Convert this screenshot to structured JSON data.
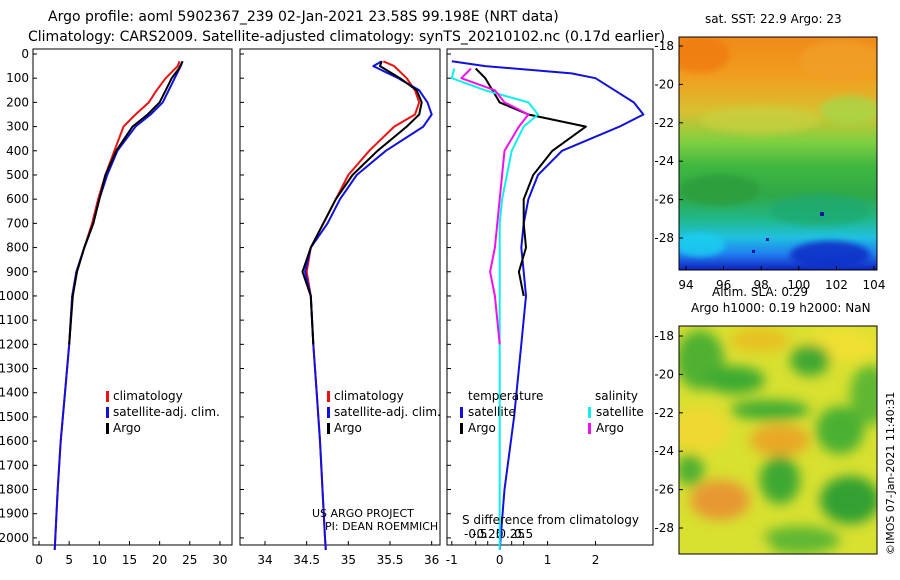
{
  "header": {
    "line1": "Argo profile: aoml 5902367_239 02-Jan-2021 23.58S 99.198E (NRT data)",
    "line2": "Climatology: CARS2009. Satellite-adjusted climatology: synTS_20210102.nc (0.17d earlier)"
  },
  "colors": {
    "climatology": "#ee1111",
    "satellite": "#1111dd",
    "argo": "#000000",
    "salinity_satellite": "#11eeee",
    "salinity_argo": "#ee11ee"
  },
  "chart_data": [
    {
      "type": "line",
      "panel": "temperature",
      "ylabel": "Depth",
      "ylim": [
        2050,
        0
      ],
      "yticks": [
        0,
        100,
        200,
        300,
        400,
        500,
        600,
        700,
        800,
        900,
        1000,
        1100,
        1200,
        1300,
        1400,
        1500,
        1600,
        1700,
        1800,
        1900,
        2000
      ],
      "xlim": [
        -1,
        32
      ],
      "xticks": [
        0,
        5,
        10,
        15,
        20,
        25,
        30
      ],
      "legend": [
        "climatology",
        "satellite-adj. clim.",
        "Argo"
      ],
      "series": [
        {
          "name": "climatology",
          "color": "#ee1111",
          "points": [
            [
              23.3,
              30
            ],
            [
              23.0,
              50
            ],
            [
              21,
              100
            ],
            [
              19.5,
              150
            ],
            [
              18.2,
              200
            ],
            [
              16,
              250
            ],
            [
              14,
              300
            ],
            [
              12.5,
              400
            ],
            [
              11,
              500
            ],
            [
              9.8,
              600
            ],
            [
              8.8,
              700
            ],
            [
              7.5,
              800
            ],
            [
              6.2,
              900
            ],
            [
              5.5,
              1000
            ],
            [
              5.0,
              1200
            ],
            [
              4.3,
              1400
            ],
            [
              3.6,
              1600
            ],
            [
              3.1,
              1800
            ],
            [
              2.7,
              2000
            ],
            [
              2.6,
              2050
            ]
          ]
        },
        {
          "name": "satellite-adj. clim.",
          "color": "#1111dd",
          "points": [
            [
              23.8,
              30
            ],
            [
              23.5,
              50
            ],
            [
              22.5,
              100
            ],
            [
              21.5,
              150
            ],
            [
              20.5,
              200
            ],
            [
              18.5,
              250
            ],
            [
              16,
              300
            ],
            [
              13,
              400
            ],
            [
              11.3,
              500
            ],
            [
              10,
              600
            ],
            [
              9,
              700
            ],
            [
              7.5,
              800
            ],
            [
              6.2,
              900
            ],
            [
              5.5,
              1000
            ],
            [
              5.0,
              1200
            ],
            [
              4.3,
              1400
            ],
            [
              3.6,
              1600
            ],
            [
              3.1,
              1800
            ],
            [
              2.7,
              2000
            ],
            [
              2.6,
              2050
            ]
          ]
        },
        {
          "name": "Argo",
          "color": "#000000",
          "points": [
            [
              23.8,
              30
            ],
            [
              23.2,
              60
            ],
            [
              22.0,
              100
            ],
            [
              21.0,
              150
            ],
            [
              20.0,
              200
            ],
            [
              18,
              250
            ],
            [
              15.5,
              300
            ],
            [
              12.8,
              400
            ],
            [
              11,
              500
            ],
            [
              10,
              600
            ],
            [
              9,
              700
            ],
            [
              7.5,
              800
            ],
            [
              6.3,
              900
            ],
            [
              5.6,
              1000
            ],
            [
              5.0,
              1200
            ]
          ]
        }
      ]
    },
    {
      "type": "line",
      "panel": "salinity",
      "ylim": [
        2050,
        0
      ],
      "xlim": [
        33.7,
        36.1
      ],
      "xticks": [
        34,
        34.5,
        35,
        35.5,
        36
      ],
      "legend": [
        "climatology",
        "satellite-adj. clim.",
        "Argo"
      ],
      "annotations": [
        "US ARGO PROJECT",
        "PI: DEAN ROEMMICH"
      ],
      "series": [
        {
          "name": "climatology",
          "color": "#ee1111",
          "points": [
            [
              35.42,
              30
            ],
            [
              35.55,
              50
            ],
            [
              35.7,
              100
            ],
            [
              35.8,
              150
            ],
            [
              35.85,
              200
            ],
            [
              35.8,
              250
            ],
            [
              35.55,
              300
            ],
            [
              35.25,
              400
            ],
            [
              35.0,
              500
            ],
            [
              34.85,
              600
            ],
            [
              34.7,
              700
            ],
            [
              34.55,
              800
            ],
            [
              34.5,
              900
            ],
            [
              34.55,
              1000
            ],
            [
              34.58,
              1200
            ],
            [
              34.62,
              1400
            ],
            [
              34.66,
              1600
            ],
            [
              34.69,
              1800
            ],
            [
              34.72,
              2000
            ],
            [
              34.73,
              2050
            ]
          ]
        },
        {
          "name": "satellite-adj. clim.",
          "color": "#1111dd",
          "points": [
            [
              35.4,
              30
            ],
            [
              35.3,
              50
            ],
            [
              35.6,
              100
            ],
            [
              35.85,
              150
            ],
            [
              35.95,
              200
            ],
            [
              36.0,
              250
            ],
            [
              35.9,
              300
            ],
            [
              35.45,
              400
            ],
            [
              35.1,
              500
            ],
            [
              34.9,
              600
            ],
            [
              34.75,
              700
            ],
            [
              34.55,
              800
            ],
            [
              34.48,
              900
            ],
            [
              34.55,
              1000
            ],
            [
              34.58,
              1200
            ],
            [
              34.62,
              1400
            ],
            [
              34.66,
              1600
            ],
            [
              34.69,
              1800
            ],
            [
              34.72,
              2000
            ],
            [
              34.73,
              2050
            ]
          ]
        },
        {
          "name": "Argo",
          "color": "#000000",
          "points": [
            [
              35.4,
              30
            ],
            [
              35.38,
              50
            ],
            [
              35.62,
              100
            ],
            [
              35.82,
              150
            ],
            [
              35.88,
              200
            ],
            [
              35.85,
              250
            ],
            [
              35.7,
              300
            ],
            [
              35.35,
              400
            ],
            [
              35.05,
              500
            ],
            [
              34.85,
              600
            ],
            [
              34.7,
              700
            ],
            [
              34.55,
              800
            ],
            [
              34.45,
              900
            ],
            [
              34.55,
              1000
            ],
            [
              34.58,
              1200
            ]
          ]
        }
      ]
    },
    {
      "type": "line",
      "panel": "difference",
      "title": "S difference from climatology",
      "ylim": [
        2050,
        0
      ],
      "xlim": [
        -1.1,
        3.2
      ],
      "xticks": [
        -0.5,
        -0.25,
        0,
        0.25,
        0.5
      ],
      "xtick_labels": [
        "-0.5",
        "-0.25",
        "0",
        "0.25",
        "0.5"
      ],
      "xticks2": [
        -1,
        1,
        2
      ],
      "xtick2_labels": [
        "-1",
        "1",
        "2"
      ],
      "legend_groups": {
        "temperature": [
          "satellite",
          "Argo"
        ],
        "salinity": [
          "satellite",
          "Argo"
        ]
      },
      "series": [
        {
          "name": "T satellite",
          "color": "#1111dd",
          "points": [
            [
              -1.0,
              30
            ],
            [
              -0.3,
              50
            ],
            [
              1.5,
              80
            ],
            [
              2.0,
              100
            ],
            [
              2.4,
              150
            ],
            [
              2.8,
              200
            ],
            [
              3.0,
              250
            ],
            [
              2.5,
              300
            ],
            [
              1.3,
              400
            ],
            [
              0.8,
              500
            ],
            [
              0.6,
              600
            ],
            [
              0.5,
              700
            ],
            [
              0.45,
              800
            ],
            [
              0.5,
              900
            ],
            [
              0.55,
              1000
            ],
            [
              0.45,
              1200
            ],
            [
              0.3,
              1500
            ],
            [
              0.1,
              1800
            ],
            [
              0,
              2050
            ]
          ]
        },
        {
          "name": "T Argo",
          "color": "#000000",
          "points": [
            [
              -0.5,
              60
            ],
            [
              -0.3,
              100
            ],
            [
              0,
              200
            ],
            [
              0.6,
              250
            ],
            [
              1.8,
              300
            ],
            [
              1.1,
              400
            ],
            [
              0.7,
              500
            ],
            [
              0.5,
              600
            ],
            [
              0.5,
              700
            ],
            [
              0.55,
              800
            ],
            [
              0.4,
              900
            ],
            [
              0.5,
              1000
            ]
          ]
        },
        {
          "name": "S satellite",
          "color": "#11eeee",
          "points": [
            [
              -0.95,
              60
            ],
            [
              -1.0,
              100
            ],
            [
              -0.3,
              150
            ],
            [
              0.6,
              200
            ],
            [
              0.8,
              250
            ],
            [
              0.5,
              300
            ],
            [
              0.25,
              400
            ],
            [
              0.15,
              500
            ],
            [
              0.05,
              600
            ],
            [
              0,
              700
            ],
            [
              0,
              1000
            ],
            [
              0,
              1500
            ],
            [
              0,
              2050
            ]
          ]
        },
        {
          "name": "S Argo",
          "color": "#ee11ee",
          "points": [
            [
              -0.6,
              60
            ],
            [
              -0.8,
              100
            ],
            [
              -0.1,
              150
            ],
            [
              0.1,
              200
            ],
            [
              0.6,
              250
            ],
            [
              0.4,
              300
            ],
            [
              0.1,
              400
            ],
            [
              0.05,
              500
            ],
            [
              0,
              600
            ],
            [
              -0.05,
              700
            ],
            [
              -0.1,
              800
            ],
            [
              -0.2,
              900
            ],
            [
              -0.1,
              1000
            ],
            [
              0,
              1200
            ]
          ]
        }
      ]
    }
  ],
  "maps": {
    "sst": {
      "title": "sat. SST: 22.9 Argo: 23",
      "xticks": [
        94,
        96,
        98,
        100,
        102,
        104
      ],
      "yticks": [
        -18,
        -20,
        -22,
        -24,
        -26,
        -28
      ]
    },
    "sla": {
      "title1": "Altim. SLA: 0.29",
      "title2": "Argo h1000: 0.19 h2000: NaN",
      "yticks": [
        -18,
        -20,
        -22,
        -24,
        -26,
        -28
      ],
      "credit": "©IMOS 07-Jan-2021 11:40:31"
    }
  },
  "legends": {
    "panel1": [
      "climatology",
      "satellite-adj. clim.",
      "Argo"
    ],
    "panel2": [
      "climatology",
      "satellite-adj. clim.",
      "Argo"
    ],
    "panel3": {
      "temperature_title": "temperature",
      "salinity_title": "salinity",
      "satellite": "satellite",
      "argo": "Argo"
    }
  }
}
